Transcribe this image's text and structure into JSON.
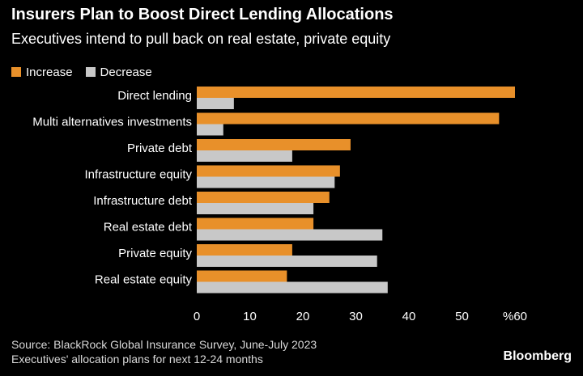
{
  "header": {
    "title": "Insurers Plan to Boost Direct Lending Allocations",
    "subtitle": "Executives intend to pull back on real estate, private equity"
  },
  "footer": {
    "source": "Source: BlackRock Global Insurance Survey, June-July 2023",
    "note": "Executives' allocation plans for next 12-24 months",
    "brand": "Bloomberg"
  },
  "colors": {
    "increase": "#e8902a",
    "decrease": "#c8c8c8",
    "background": "#000000",
    "text": "#ffffff"
  },
  "chart_data": {
    "type": "bar",
    "orientation": "horizontal",
    "title": "Insurers Plan to Boost Direct Lending Allocations",
    "subtitle": "Executives intend to pull back on real estate, private equity",
    "categories": [
      "Direct lending",
      "Multi alternatives investments",
      "Private debt",
      "Infrastructure equity",
      "Infrastructure debt",
      "Real estate debt",
      "Private equity",
      "Real estate equity"
    ],
    "series": [
      {
        "name": "Increase",
        "values": [
          60,
          57,
          29,
          27,
          25,
          22,
          18,
          17
        ]
      },
      {
        "name": "Decrease",
        "values": [
          7,
          5,
          18,
          26,
          22,
          35,
          34,
          36
        ]
      }
    ],
    "xlim": [
      0,
      60
    ],
    "xticks": [
      "0",
      "10",
      "20",
      "30",
      "40",
      "50",
      "%60"
    ],
    "legend_position": "top-left",
    "grid": false
  }
}
